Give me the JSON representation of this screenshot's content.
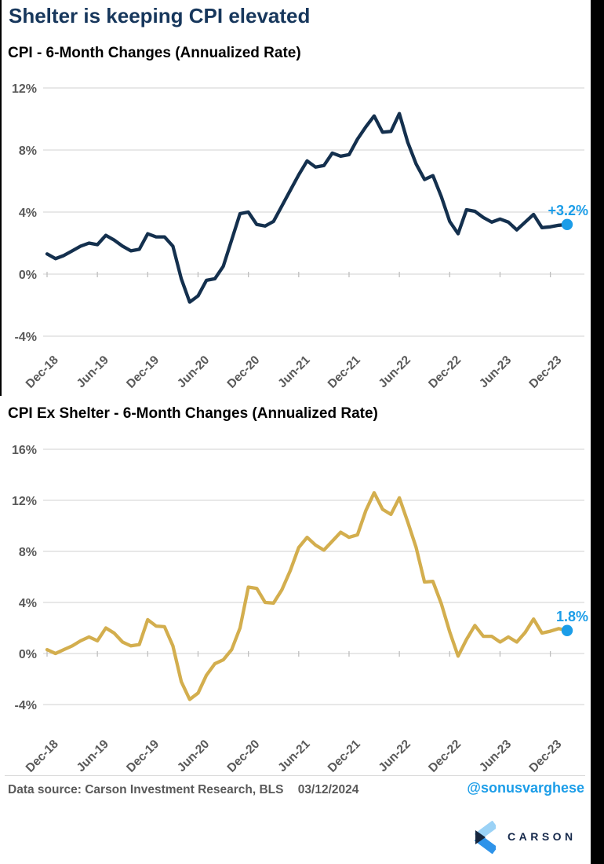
{
  "page": {
    "title": "Shelter is keeping CPI elevated"
  },
  "colors": {
    "accent_blue": "#1b9de8",
    "navy_line": "#14304e",
    "gold_line": "#d3ae4e",
    "title_navy": "#17375c",
    "gray_text": "#595959",
    "gridline": "#d9d9d9"
  },
  "chart_data": [
    {
      "type": "line",
      "title": "CPI - 6-Month Changes (Annualized Rate)",
      "series_name": "CPI 6-month annualized change",
      "frequency": "monthly",
      "x_start": "Dec-18",
      "x_end": "Feb-24",
      "xticks": [
        "Dec-18",
        "Jun-19",
        "Dec-19",
        "Jun-20",
        "Dec-20",
        "Jun-21",
        "Dec-21",
        "Jun-22",
        "Dec-22",
        "Jun-23",
        "Dec-23"
      ],
      "yticks": [
        "12%",
        "8%",
        "4%",
        "0%",
        "-4%"
      ],
      "ylim": [
        -4,
        12
      ],
      "grid": true,
      "line_color": "#14304e",
      "end_label": "+3.2%",
      "values": [
        1.3,
        1.0,
        1.2,
        1.5,
        1.8,
        2.0,
        1.9,
        2.5,
        2.2,
        1.8,
        1.5,
        1.6,
        2.6,
        2.4,
        2.4,
        1.8,
        -0.3,
        -1.8,
        -1.4,
        -0.4,
        -0.3,
        0.5,
        2.2,
        3.9,
        4.0,
        3.2,
        3.1,
        3.4,
        4.4,
        5.4,
        6.4,
        7.3,
        6.9,
        7.0,
        7.8,
        7.6,
        7.7,
        8.7,
        9.5,
        10.2,
        9.15,
        9.2,
        10.35,
        8.5,
        7.1,
        6.1,
        6.35,
        5.0,
        3.4,
        2.6,
        4.15,
        4.05,
        3.65,
        3.35,
        3.55,
        3.35,
        2.85,
        3.35,
        3.85,
        3.0,
        3.05,
        3.15,
        3.2
      ]
    },
    {
      "type": "line",
      "title": "CPI Ex Shelter - 6-Month Changes (Annualized Rate)",
      "series_name": "CPI ex shelter 6-month annualized change",
      "frequency": "monthly",
      "x_start": "Dec-18",
      "x_end": "Feb-24",
      "xticks": [
        "Dec-18",
        "Jun-19",
        "Dec-19",
        "Jun-20",
        "Dec-20",
        "Jun-21",
        "Dec-21",
        "Jun-22",
        "Dec-22",
        "Jun-23",
        "Dec-23"
      ],
      "yticks": [
        "16%",
        "12%",
        "8%",
        "4%",
        "0%",
        "-4%"
      ],
      "ylim": [
        -4,
        16
      ],
      "grid": true,
      "line_color": "#d3ae4e",
      "end_label": "1.8%",
      "values": [
        0.3,
        0.0,
        0.3,
        0.6,
        1.0,
        1.3,
        1.0,
        2.0,
        1.6,
        0.9,
        0.6,
        0.7,
        2.65,
        2.15,
        2.1,
        0.6,
        -2.2,
        -3.6,
        -3.1,
        -1.7,
        -0.8,
        -0.5,
        0.3,
        2.0,
        5.2,
        5.1,
        4.0,
        3.95,
        5.0,
        6.5,
        8.3,
        9.1,
        8.5,
        8.1,
        8.8,
        9.5,
        9.1,
        9.3,
        11.2,
        12.6,
        11.3,
        10.9,
        12.2,
        10.3,
        8.3,
        5.6,
        5.65,
        3.9,
        1.7,
        -0.2,
        1.1,
        2.2,
        1.35,
        1.35,
        0.9,
        1.3,
        0.9,
        1.65,
        2.7,
        1.6,
        1.75,
        1.95,
        1.8
      ]
    }
  ],
  "footer": {
    "data_source_label": "Data source:",
    "data_source_value": "Carson Investment Research, BLS",
    "date": "03/12/2024",
    "handle": "@sonusvarghese",
    "logo_text": "CARSON"
  }
}
